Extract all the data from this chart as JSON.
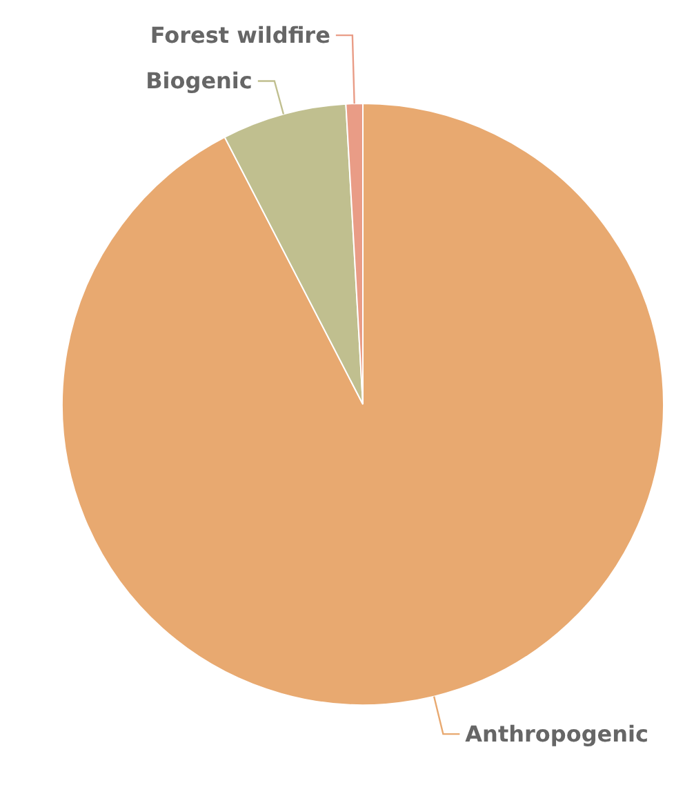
{
  "chart_data": {
    "type": "pie",
    "categories": [
      "Anthropogenic",
      "Biogenic",
      "Forest wildfire"
    ],
    "values": [
      92.4,
      6.7,
      0.9
    ],
    "colors": [
      "#e8a970",
      "#c0bf8f",
      "#e99c86"
    ],
    "legend": false
  }
}
